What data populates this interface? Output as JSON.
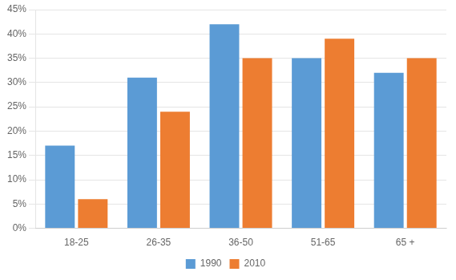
{
  "chart_data": {
    "type": "bar",
    "categories": [
      "18-25",
      "26-35",
      "36-50",
      "51-65",
      "65 +"
    ],
    "series": [
      {
        "name": "1990",
        "color": "#5B9BD5",
        "values": [
          0.17,
          0.31,
          0.42,
          0.35,
          0.32
        ]
      },
      {
        "name": "2010",
        "color": "#ED7D31",
        "values": [
          0.06,
          0.24,
          0.35,
          0.39,
          0.35
        ]
      }
    ],
    "ylim": [
      0,
      0.45
    ],
    "yticks": [
      {
        "value": 0,
        "label": "0%"
      },
      {
        "value": 0.05,
        "label": "5%"
      },
      {
        "value": 0.1,
        "label": "10%"
      },
      {
        "value": 0.15,
        "label": "15%"
      },
      {
        "value": 0.2,
        "label": "20%"
      },
      {
        "value": 0.25,
        "label": "25%"
      },
      {
        "value": 0.3,
        "label": "30%"
      },
      {
        "value": 0.35,
        "label": "35%"
      },
      {
        "value": 0.4,
        "label": "40%"
      },
      {
        "value": 0.45,
        "label": "45%"
      }
    ],
    "grid": true,
    "legend": "bottom"
  }
}
